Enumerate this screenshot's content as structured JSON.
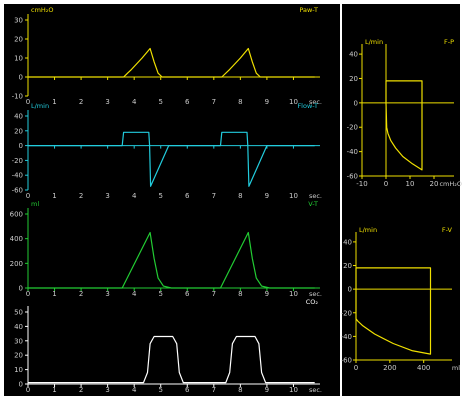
{
  "colors": {
    "yellow": "#f0e000",
    "cyan": "#22ccdd",
    "green": "#22cc33",
    "white": "#ffffff",
    "axis_label": "#cccccc"
  },
  "time_charts": [
    {
      "id": "paw",
      "name": "Paw-T",
      "unit": "cmH₂O",
      "x_unit": "sec.",
      "color": "yellow",
      "ylim": [
        -10,
        30
      ],
      "yticks": [
        -10,
        0,
        10,
        20,
        30
      ],
      "xticks": [
        0,
        1,
        2,
        3,
        4,
        5,
        6,
        7,
        8,
        9,
        10
      ],
      "xlim": [
        0,
        11
      ],
      "points": [
        [
          0,
          0
        ],
        [
          3.6,
          0
        ],
        [
          3.9,
          4
        ],
        [
          4.3,
          10
        ],
        [
          4.6,
          15
        ],
        [
          4.75,
          8
        ],
        [
          4.9,
          2
        ],
        [
          5.05,
          0
        ],
        [
          7.3,
          0
        ],
        [
          7.6,
          4
        ],
        [
          8.0,
          10
        ],
        [
          8.3,
          15
        ],
        [
          8.45,
          8
        ],
        [
          8.6,
          2
        ],
        [
          8.75,
          0
        ],
        [
          10.8,
          0
        ]
      ]
    },
    {
      "id": "flow",
      "name": "Flow-T",
      "unit": "L/min",
      "x_unit": "sec.",
      "color": "cyan",
      "ylim": [
        -60,
        40
      ],
      "yticks": [
        -60,
        -40,
        -20,
        0,
        20,
        40
      ],
      "xticks": [
        0,
        1,
        2,
        3,
        4,
        5,
        6,
        7,
        8,
        9,
        10
      ],
      "xlim": [
        0,
        11
      ],
      "points": [
        [
          0,
          0
        ],
        [
          3.55,
          0
        ],
        [
          3.6,
          18
        ],
        [
          4.55,
          18
        ],
        [
          4.58,
          0
        ],
        [
          4.62,
          -55
        ],
        [
          5.3,
          0
        ],
        [
          7.25,
          0
        ],
        [
          7.3,
          18
        ],
        [
          8.25,
          18
        ],
        [
          8.28,
          0
        ],
        [
          8.32,
          -55
        ],
        [
          9.0,
          0
        ],
        [
          10.8,
          0
        ]
      ]
    },
    {
      "id": "vol",
      "name": "V-T",
      "unit": "ml",
      "x_unit": "sec.",
      "color": "green",
      "ylim": [
        0,
        600
      ],
      "yticks": [
        0,
        200,
        400,
        600
      ],
      "xticks": [
        0,
        1,
        2,
        3,
        4,
        5,
        6,
        7,
        8,
        9,
        10
      ],
      "xlim": [
        0,
        11
      ],
      "points": [
        [
          0,
          0
        ],
        [
          3.55,
          0
        ],
        [
          4.6,
          450
        ],
        [
          4.75,
          240
        ],
        [
          4.9,
          80
        ],
        [
          5.1,
          15
        ],
        [
          5.4,
          0
        ],
        [
          7.25,
          0
        ],
        [
          8.3,
          450
        ],
        [
          8.45,
          240
        ],
        [
          8.6,
          80
        ],
        [
          8.8,
          15
        ],
        [
          9.1,
          0
        ],
        [
          10.8,
          0
        ]
      ]
    },
    {
      "id": "co2",
      "name": "CO₂",
      "unit": "",
      "x_unit": "sec.",
      "color": "white",
      "ylim": [
        0,
        50
      ],
      "yticks": [
        0,
        10,
        20,
        30,
        40,
        50
      ],
      "xticks": [
        0,
        1,
        2,
        3,
        4,
        5,
        6,
        7,
        8,
        9,
        10
      ],
      "xlim": [
        0,
        11
      ],
      "points": [
        [
          0,
          1
        ],
        [
          4.35,
          1
        ],
        [
          4.5,
          8
        ],
        [
          4.6,
          28
        ],
        [
          4.75,
          33
        ],
        [
          5.45,
          33
        ],
        [
          5.6,
          28
        ],
        [
          5.7,
          8
        ],
        [
          5.85,
          1
        ],
        [
          7.45,
          1
        ],
        [
          7.6,
          8
        ],
        [
          7.7,
          28
        ],
        [
          7.85,
          33
        ],
        [
          8.55,
          33
        ],
        [
          8.7,
          28
        ],
        [
          8.8,
          8
        ],
        [
          8.95,
          1
        ],
        [
          10.8,
          1
        ]
      ]
    }
  ],
  "loop_charts": [
    {
      "id": "fp",
      "name": "F-P",
      "unit": "L/min",
      "x_unit": "cmH₂O",
      "color": "yellow",
      "xlim": [
        -10,
        25
      ],
      "ylim": [
        -60,
        45
      ],
      "xticks": [
        -10,
        0,
        10,
        20
      ],
      "yticks": [
        -60,
        -40,
        -20,
        0,
        20,
        40
      ],
      "points": [
        [
          0,
          0
        ],
        [
          0,
          18
        ],
        [
          15,
          18
        ],
        [
          15,
          -55
        ],
        [
          11,
          -50
        ],
        [
          7,
          -44
        ],
        [
          4,
          -37
        ],
        [
          2,
          -31
        ],
        [
          0.8,
          -25
        ],
        [
          0.3,
          -20
        ],
        [
          0,
          0
        ]
      ]
    },
    {
      "id": "fv",
      "name": "F-V",
      "unit": "L/min",
      "x_unit": "ml",
      "color": "yellow",
      "xlim": [
        0,
        520
      ],
      "ylim": [
        -60,
        45
      ],
      "xticks": [
        0,
        200,
        400
      ],
      "yticks": [
        -60,
        -40,
        -20,
        0,
        20,
        40
      ],
      "points": [
        [
          0,
          -25
        ],
        [
          0,
          18
        ],
        [
          440,
          18
        ],
        [
          440,
          -55
        ],
        [
          330,
          -52
        ],
        [
          220,
          -46
        ],
        [
          110,
          -38
        ],
        [
          40,
          -31
        ],
        [
          10,
          -27
        ],
        [
          0,
          -25
        ]
      ]
    }
  ]
}
